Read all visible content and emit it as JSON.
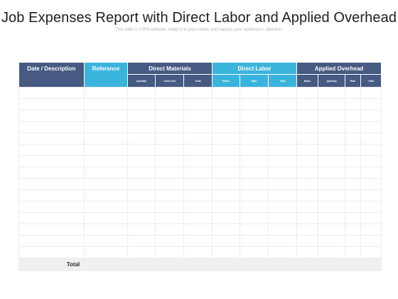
{
  "title": "Job Expenses Report with Direct Labor and Applied Overhead",
  "subtitle": "This slide is 100% editable. Adapt it to your needs and capture your audience's attention.",
  "table": {
    "groups": {
      "date_description": "Date / Description",
      "reference": "Reference",
      "direct_materials": "Direct Materials",
      "direct_labor": "Direct Labor",
      "applied_overhead": "Applied Overhead"
    },
    "subheaders": {
      "direct_materials": [
        "Quantity",
        "Cost/ Unit",
        "Total"
      ],
      "direct_labor": [
        "Hours",
        "Rate",
        "Total"
      ],
      "applied_overhead": [
        "Basis",
        "Quantity",
        "Rate",
        "Total"
      ]
    },
    "total_label": "Total"
  },
  "colors": {
    "header_dark": "#465a82",
    "header_light": "#3bb4dd",
    "total_row": "#f0f0f0"
  }
}
